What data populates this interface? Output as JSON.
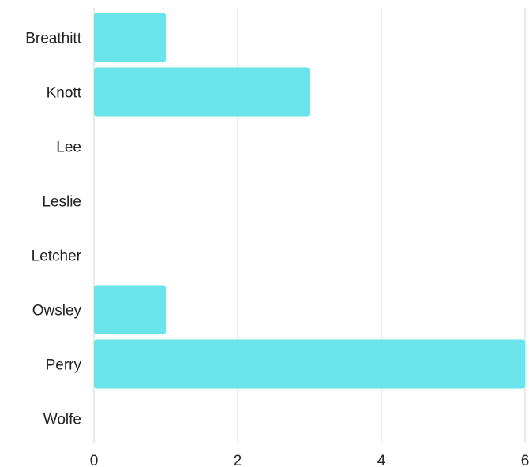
{
  "chart_data": {
    "type": "bar",
    "orientation": "horizontal",
    "categories": [
      "Breathitt",
      "Knott",
      "Lee",
      "Leslie",
      "Letcher",
      "Owsley",
      "Perry",
      "Wolfe"
    ],
    "values": [
      1,
      3,
      0,
      0,
      0,
      1,
      6,
      0
    ],
    "xlim": [
      0,
      6
    ],
    "xticks": [
      0,
      2,
      4,
      6
    ],
    "xtick_labels": [
      "0",
      "2",
      "4",
      "6"
    ],
    "grid": true,
    "bar_color": "#6ae4ea",
    "grid_color": "#d6d6d6"
  }
}
